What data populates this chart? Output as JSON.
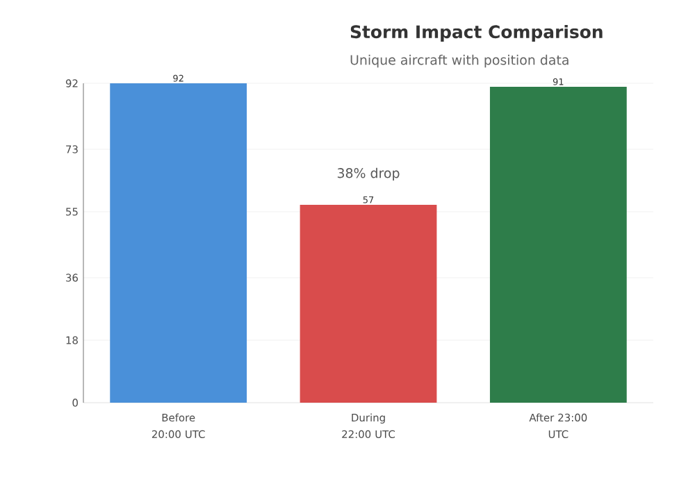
{
  "chart_data": {
    "type": "bar",
    "title": "Storm Impact Comparison",
    "subtitle": "Unique aircraft with position data",
    "categories": [
      "Before 20:00 UTC",
      "During 22:00 UTC",
      "After 23:00 UTC"
    ],
    "values": [
      92,
      57,
      91
    ],
    "colors": [
      "#4a90d9",
      "#d94c4c",
      "#2e7d4a"
    ],
    "ylim": [
      0,
      92
    ],
    "yticks": [
      0,
      18,
      36,
      55,
      73,
      92
    ],
    "grid": "y",
    "data_labels": true,
    "annotations": [
      "38% drop"
    ]
  }
}
